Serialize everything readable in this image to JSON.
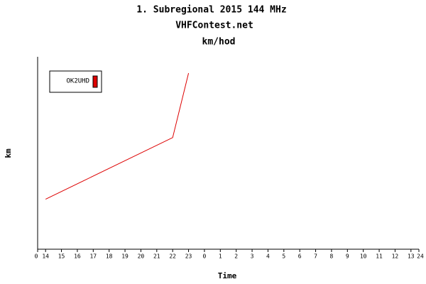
{
  "chart_data": {
    "type": "line",
    "title": "1. Subregional 2015 144 MHz",
    "subtitle": "VHFContest.net",
    "y_unit_title": "km/hod",
    "y_label": "km",
    "x_label": "Time",
    "x": [
      0.5,
      8.5,
      9.5
    ],
    "series": [
      {
        "name": "OK2UHD",
        "color": "#dd0000",
        "values": [
          26,
          58,
          91.5
        ]
      }
    ],
    "xlim": [
      0,
      24
    ],
    "xticks": [
      0,
      {
        "value": 0.5,
        "label": "14"
      },
      {
        "value": 1.5,
        "label": "15"
      },
      {
        "value": 2.5,
        "label": "16"
      },
      {
        "value": 3.5,
        "label": "17"
      },
      {
        "value": 4.5,
        "label": "18"
      },
      {
        "value": 5.5,
        "label": "19"
      },
      {
        "value": 6.5,
        "label": "20"
      },
      {
        "value": 7.5,
        "label": "21"
      },
      {
        "value": 8.5,
        "label": "22"
      },
      {
        "value": 9.5,
        "label": "23"
      },
      {
        "value": 10.5,
        "label": "0"
      },
      {
        "value": 11.5,
        "label": "1"
      },
      {
        "value": 12.5,
        "label": "2"
      },
      {
        "value": 13.5,
        "label": "3"
      },
      {
        "value": 14.5,
        "label": "4"
      },
      {
        "value": 15.5,
        "label": "5"
      },
      {
        "value": 16.5,
        "label": "6"
      },
      {
        "value": 17.5,
        "label": "7"
      },
      {
        "value": 18.5,
        "label": "8"
      },
      {
        "value": 19.5,
        "label": "9"
      },
      {
        "value": 20.5,
        "label": "10"
      },
      {
        "value": 21.5,
        "label": "11"
      },
      {
        "value": 22.5,
        "label": "12"
      },
      {
        "value": 23.5,
        "label": "13"
      },
      24
    ],
    "ylim": [
      0,
      100
    ],
    "legend": "top-left"
  }
}
